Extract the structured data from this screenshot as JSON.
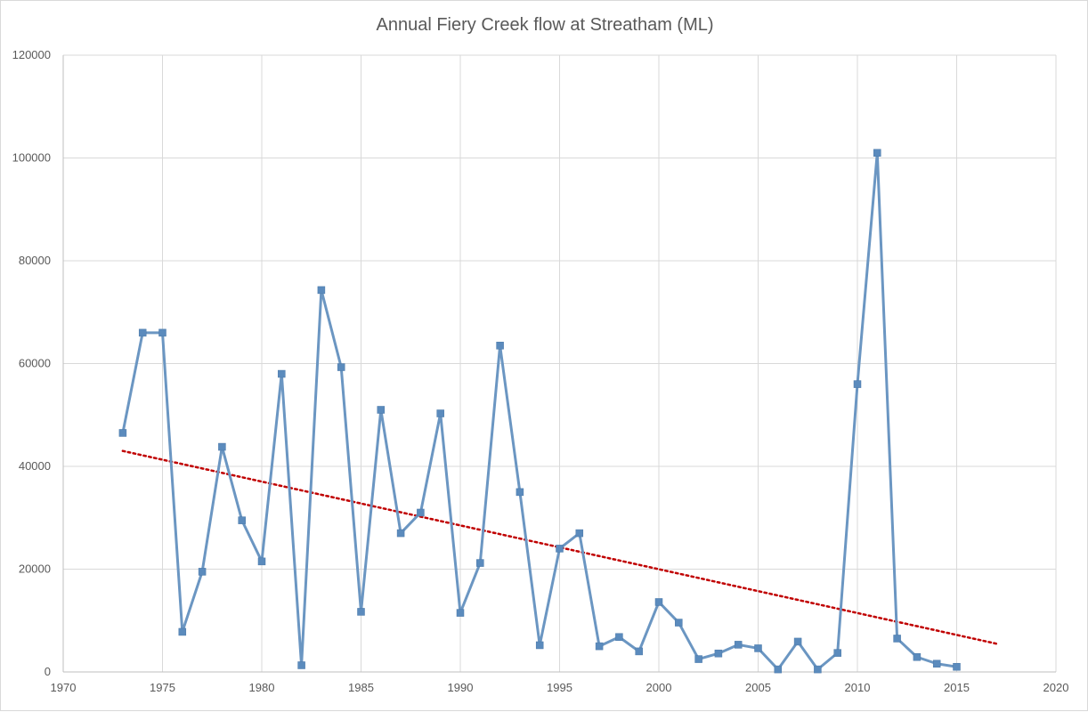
{
  "chart_data": {
    "type": "line",
    "title": "Annual Fiery Creek flow at Streatham (ML)",
    "xlim": [
      1970,
      2020
    ],
    "ylim": [
      0,
      120000
    ],
    "x_ticks": [
      "1970",
      "1975",
      "1980",
      "1985",
      "1990",
      "1995",
      "2000",
      "2005",
      "2010",
      "2015",
      "2020"
    ],
    "y_ticks": [
      "0",
      "20000",
      "40000",
      "60000",
      "80000",
      "100000",
      "120000"
    ],
    "grid": true,
    "series": [
      {
        "color": "#6b96c2",
        "marker": "square",
        "x": [
          1973,
          1974,
          1975,
          1976,
          1977,
          1978,
          1979,
          1980,
          1981,
          1982,
          1983,
          1984,
          1985,
          1986,
          1987,
          1988,
          1989,
          1990,
          1991,
          1992,
          1993,
          1994,
          1995,
          1996,
          1997,
          1998,
          1999,
          2000,
          2001,
          2002,
          2003,
          2004,
          2005,
          2006,
          2007,
          2008,
          2009,
          2010,
          2011,
          2012,
          2013,
          2014,
          2015
        ],
        "y": [
          46500,
          66000,
          66000,
          7800,
          19500,
          43800,
          29500,
          21500,
          58000,
          1300,
          74300,
          59300,
          11700,
          51000,
          27000,
          31000,
          50300,
          11500,
          21200,
          63500,
          35000,
          5200,
          24000,
          27000,
          5000,
          6800,
          4000,
          13600,
          9600,
          2500,
          3600,
          5300,
          4600,
          500,
          5900,
          500,
          3700,
          56000,
          101000,
          6500,
          2900,
          1600,
          1000
        ]
      }
    ],
    "trendline": {
      "type": "linear",
      "color": "#c00000",
      "style": "dotted",
      "x": [
        1973,
        2017
      ],
      "y": [
        43000,
        5500
      ]
    }
  }
}
